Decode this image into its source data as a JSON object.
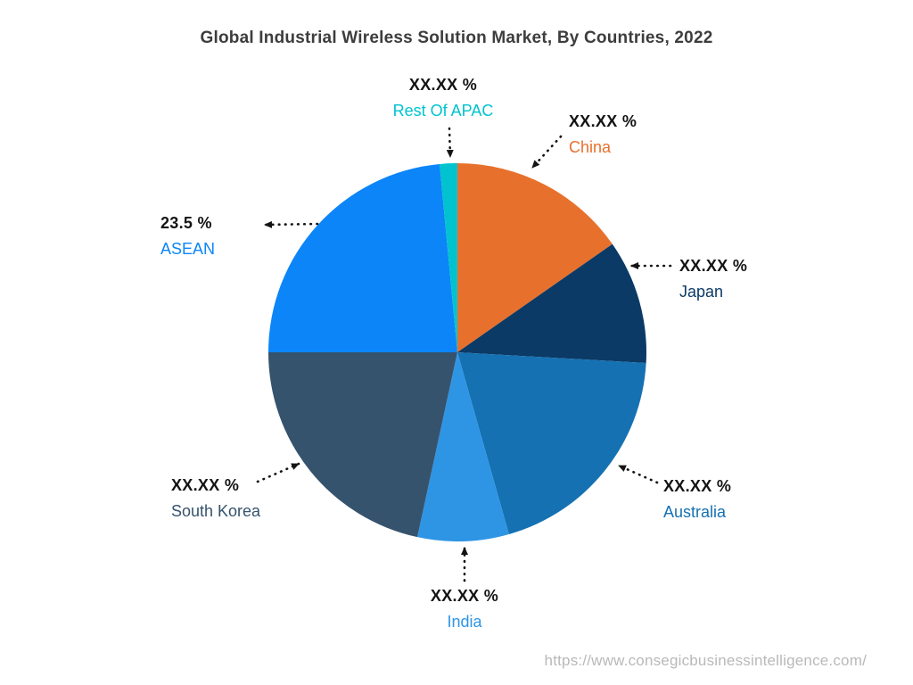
{
  "page": {
    "title": "Global Industrial Wireless Solution Market, By Countries, 2022",
    "watermark_url": "https://www.consegicbusinessintelligence.com/"
  },
  "chart_data": {
    "type": "pie",
    "title": "Global Industrial Wireless Solution Market, By Countries, 2022",
    "unit": "%",
    "direction": "clockwise",
    "start_angle_deg": 0,
    "legend": "none",
    "slices": [
      {
        "name": "China",
        "display_value": "XX.XX %",
        "value_est_pct": 15.3,
        "color": "#E7712C"
      },
      {
        "name": "Japan",
        "display_value": "XX.XX %",
        "value_est_pct": 10.6,
        "color": "#0B3A66"
      },
      {
        "name": "Australia",
        "display_value": "XX.XX %",
        "value_est_pct": 19.7,
        "color": "#1571B2"
      },
      {
        "name": "India",
        "display_value": "XX.XX %",
        "value_est_pct": 7.8,
        "color": "#2E95E5"
      },
      {
        "name": "South Korea",
        "display_value": "XX.XX %",
        "value_est_pct": 21.6,
        "color": "#35536D"
      },
      {
        "name": "ASEAN",
        "display_value": "23.5 %",
        "value_est_pct": 23.5,
        "color": "#0C85F8"
      },
      {
        "name": "Rest Of APAC",
        "display_value": "XX.XX %",
        "value_est_pct": 1.5,
        "color": "#00C3CF"
      }
    ]
  }
}
